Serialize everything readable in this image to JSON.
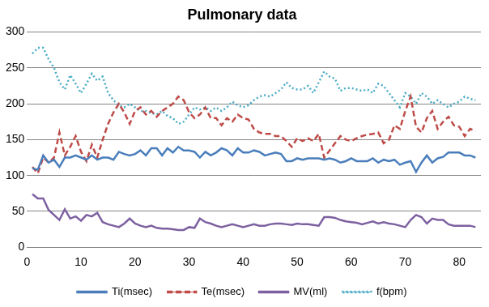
{
  "chart_data": {
    "type": "line",
    "title": "Pulmonary data",
    "x": [
      1,
      2,
      3,
      4,
      5,
      6,
      7,
      8,
      9,
      10,
      11,
      12,
      13,
      14,
      15,
      16,
      17,
      18,
      19,
      20,
      21,
      22,
      23,
      24,
      25,
      26,
      27,
      28,
      29,
      30,
      31,
      32,
      33,
      34,
      35,
      36,
      37,
      38,
      39,
      40,
      41,
      42,
      43,
      44,
      45,
      46,
      47,
      48,
      49,
      50,
      51,
      52,
      53,
      54,
      55,
      56,
      57,
      58,
      59,
      60,
      61,
      62,
      63,
      64,
      65,
      66,
      67,
      68,
      69,
      70,
      71,
      72,
      73,
      74,
      75,
      76,
      77,
      78,
      79,
      80,
      81,
      82,
      83
    ],
    "series": [
      {
        "name": "Ti(msec)",
        "color": "#4a7ebb",
        "line_style": "solid",
        "values": [
          110,
          108,
          128,
          118,
          122,
          112,
          125,
          125,
          128,
          125,
          122,
          128,
          122,
          125,
          125,
          122,
          133,
          130,
          128,
          130,
          135,
          128,
          138,
          138,
          128,
          138,
          132,
          140,
          135,
          135,
          133,
          125,
          133,
          128,
          132,
          138,
          135,
          128,
          138,
          132,
          132,
          135,
          133,
          128,
          130,
          132,
          130,
          120,
          120,
          124,
          122,
          124,
          124,
          124,
          122,
          124,
          122,
          118,
          120,
          124,
          120,
          120,
          120,
          124,
          118,
          122,
          120,
          122,
          115,
          118,
          120,
          105,
          118,
          128,
          118,
          124,
          126,
          132,
          132,
          132,
          128,
          128,
          125
        ]
      },
      {
        "name": "Te(msec)",
        "color": "#be4b48",
        "line_style": "dashed",
        "values": [
          112,
          103,
          125,
          118,
          125,
          160,
          128,
          140,
          155,
          133,
          120,
          143,
          125,
          150,
          172,
          188,
          200,
          188,
          172,
          190,
          195,
          185,
          190,
          182,
          190,
          195,
          200,
          210,
          205,
          188,
          180,
          185,
          195,
          180,
          180,
          170,
          180,
          175,
          185,
          180,
          178,
          165,
          160,
          158,
          158,
          155,
          155,
          148,
          140,
          152,
          148,
          152,
          148,
          158,
          125,
          135,
          145,
          155,
          150,
          148,
          152,
          155,
          157,
          158,
          160,
          145,
          150,
          170,
          165,
          190,
          210,
          168,
          160,
          180,
          190,
          165,
          175,
          182,
          170,
          168,
          155,
          165,
          162
        ]
      },
      {
        "name": "MV(ml)",
        "color": "#7d60a0",
        "line_style": "solid",
        "values": [
          74,
          68,
          68,
          52,
          45,
          38,
          53,
          40,
          43,
          37,
          45,
          43,
          48,
          35,
          32,
          30,
          28,
          33,
          40,
          33,
          30,
          28,
          30,
          27,
          26,
          26,
          25,
          24,
          24,
          28,
          27,
          40,
          35,
          33,
          30,
          28,
          30,
          32,
          30,
          28,
          30,
          32,
          30,
          30,
          32,
          33,
          33,
          32,
          31,
          33,
          32,
          32,
          31,
          30,
          42,
          42,
          41,
          38,
          36,
          35,
          34,
          32,
          34,
          36,
          33,
          35,
          33,
          32,
          30,
          28,
          38,
          45,
          42,
          33,
          40,
          38,
          38,
          32,
          30,
          30,
          30,
          30,
          28
        ]
      },
      {
        "name": "f(bpm)",
        "color": "#4bacc6",
        "line_style": "dotted",
        "values": [
          270,
          278,
          278,
          262,
          250,
          230,
          220,
          240,
          228,
          215,
          228,
          242,
          232,
          238,
          215,
          205,
          198,
          195,
          200,
          195,
          190,
          190,
          187,
          185,
          190,
          183,
          180,
          172,
          175,
          185,
          195,
          192,
          195,
          190,
          195,
          190,
          195,
          203,
          198,
          195,
          198,
          205,
          210,
          212,
          210,
          215,
          220,
          230,
          222,
          220,
          220,
          225,
          215,
          230,
          245,
          238,
          235,
          218,
          222,
          222,
          220,
          218,
          220,
          215,
          228,
          225,
          215,
          205,
          195,
          215,
          210,
          200,
          215,
          210,
          200,
          205,
          200,
          195,
          200,
          203,
          210,
          207,
          205
        ]
      }
    ],
    "xlim": [
      0,
      84
    ],
    "xticks": [
      0,
      10,
      20,
      30,
      40,
      50,
      60,
      70,
      80
    ],
    "ylim": [
      0,
      300
    ],
    "yticks": [
      0,
      50,
      100,
      150,
      200,
      250,
      300
    ],
    "grid": true,
    "legend": "bottom",
    "marker": "none"
  }
}
